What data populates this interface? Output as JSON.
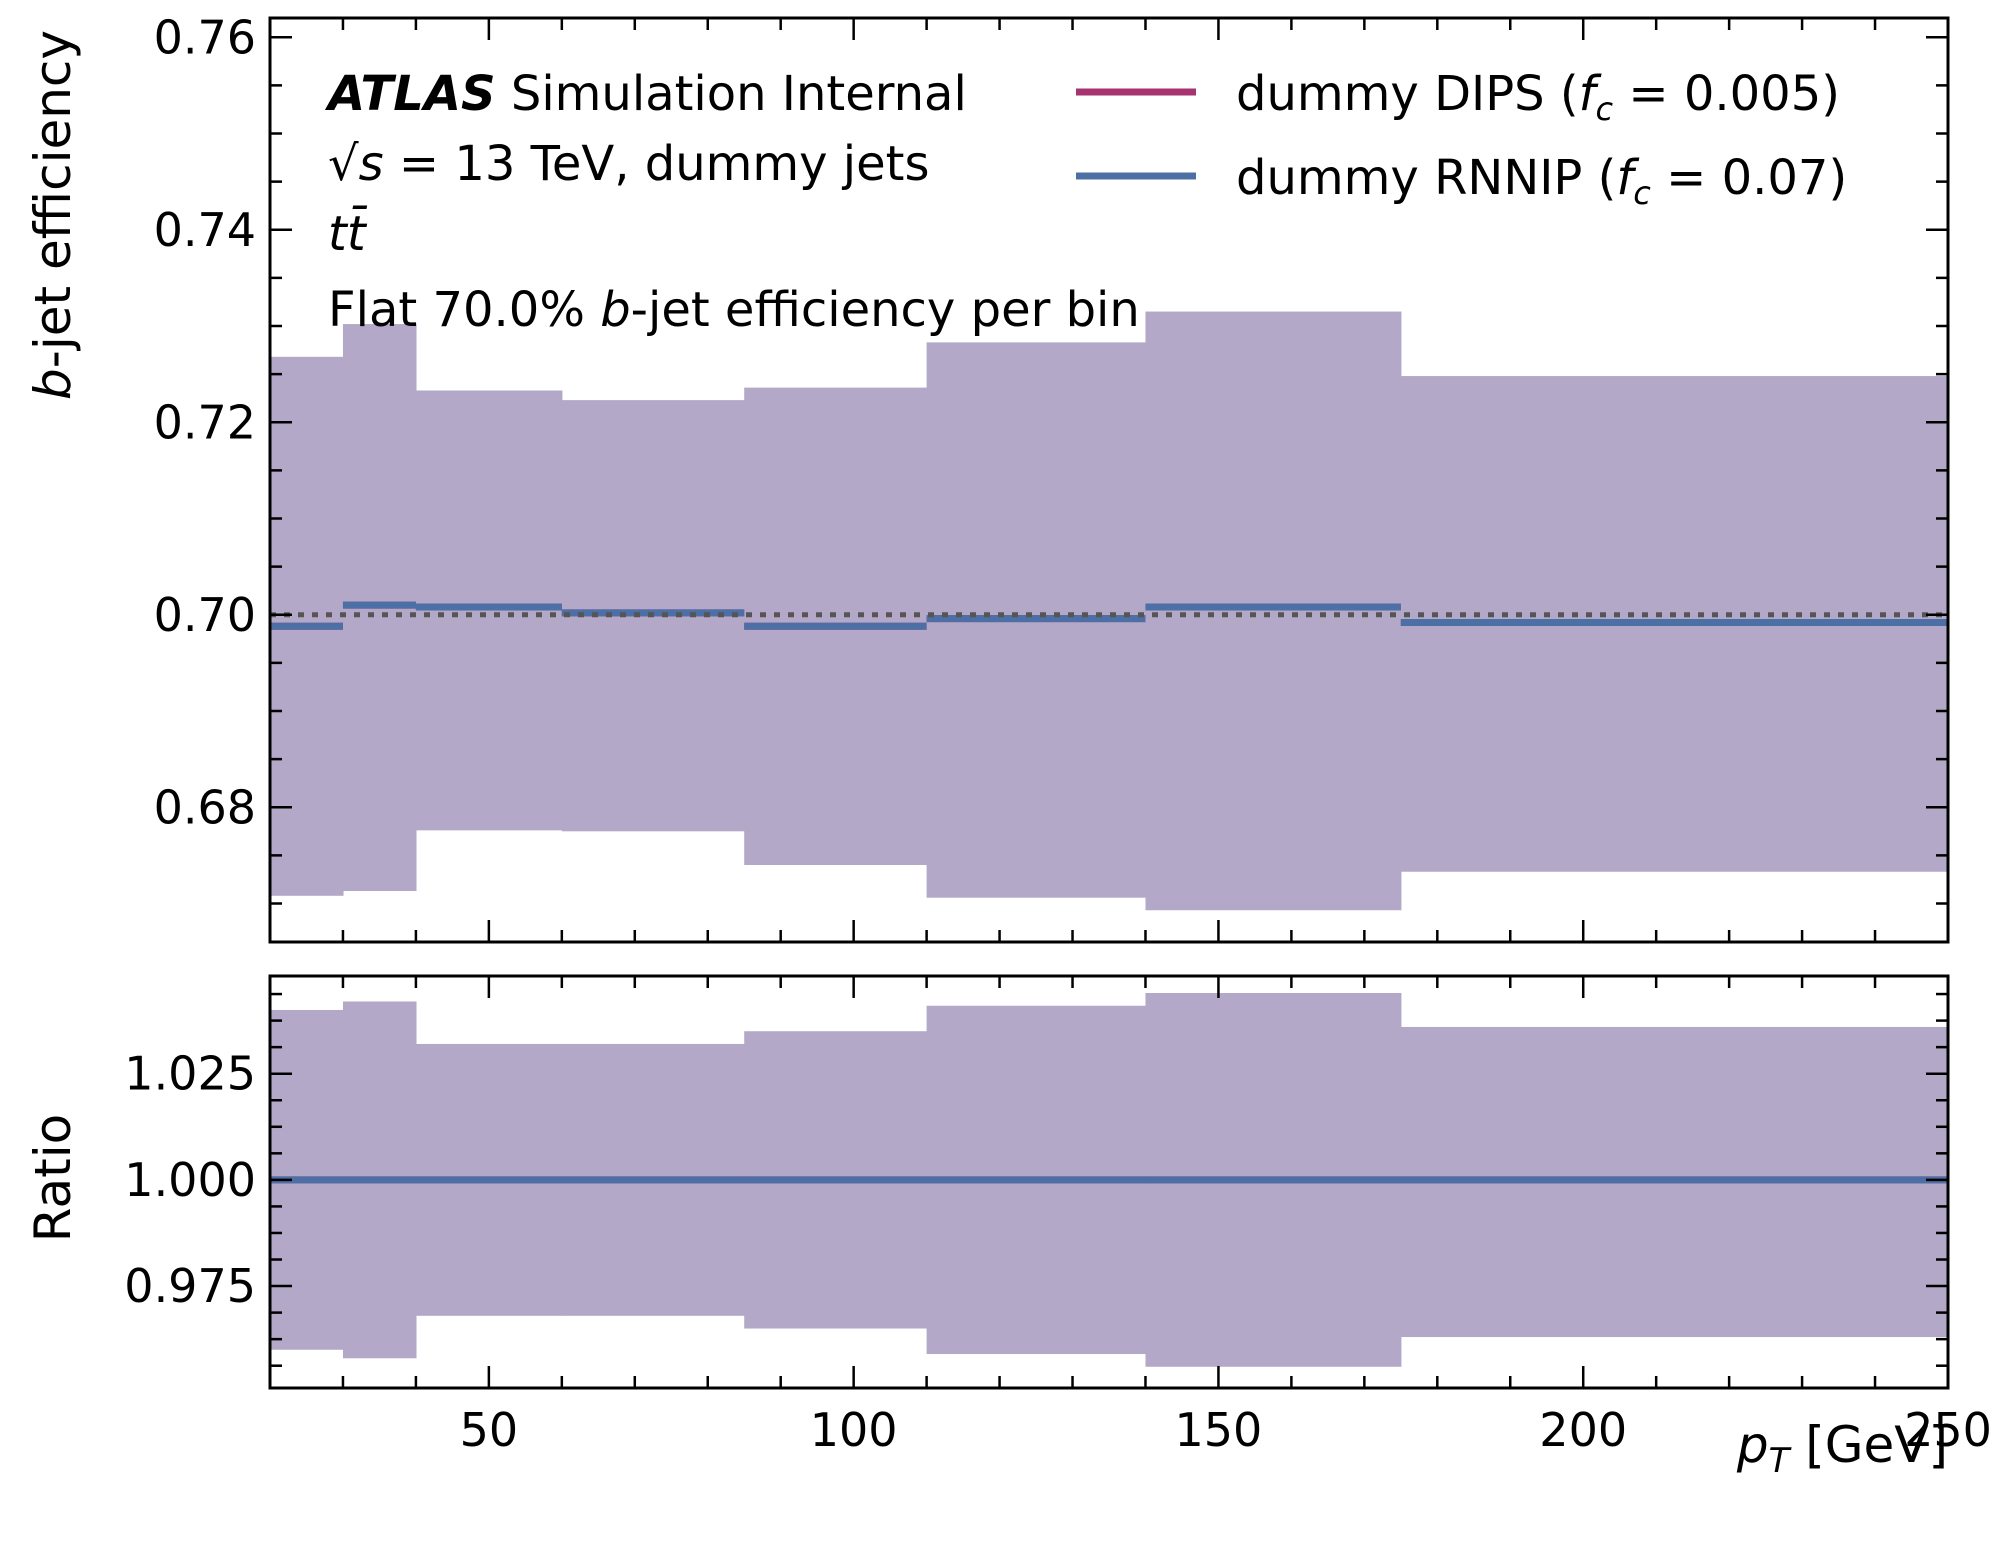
{
  "chart_data": {
    "type": "step",
    "bin_edges": [
      20,
      30,
      40,
      60,
      85,
      110,
      140,
      175,
      250
    ],
    "panels": [
      {
        "name": "efficiency",
        "ylabel": {
          "pre": "b",
          "post": "-jet efficiency"
        },
        "ylim": [
          0.666,
          0.762
        ],
        "yticks": [
          0.68,
          0.7,
          0.72,
          0.74,
          0.76
        ],
        "ytick_labels": [
          "0.68",
          "0.70",
          "0.72",
          "0.74",
          "0.76"
        ],
        "band": {
          "upper": [
            0.7268,
            0.7302,
            0.7233,
            0.7223,
            0.7236,
            0.7283,
            0.7315,
            0.7248
          ],
          "lower": [
            0.6708,
            0.6713,
            0.6776,
            0.6775,
            0.674,
            0.6706,
            0.6693,
            0.6733
          ]
        },
        "series": [
          {
            "name": "dummy DIPS",
            "values": [
              0.6988,
              0.701,
              0.7008,
              0.7002,
              0.6988,
              0.6996,
              0.7008,
              0.6992
            ]
          },
          {
            "name": "dummy RNNIP",
            "values": [
              0.6988,
              0.701,
              0.7008,
              0.7002,
              0.6988,
              0.6996,
              0.7008,
              0.6992
            ]
          }
        ],
        "reference_line": 0.7
      },
      {
        "name": "ratio",
        "ylabel": "Ratio",
        "ylim": [
          0.951,
          1.048
        ],
        "yticks": [
          0.975,
          1.0,
          1.025
        ],
        "ytick_labels": [
          "0.975",
          "1.000",
          "1.025"
        ],
        "band": {
          "upper": [
            1.04,
            1.042,
            1.032,
            1.032,
            1.035,
            1.041,
            1.044,
            1.036
          ],
          "lower": [
            0.96,
            0.958,
            0.968,
            0.968,
            0.965,
            0.959,
            0.956,
            0.963
          ]
        },
        "series": [
          {
            "name": "dummy DIPS",
            "values": [
              1.0,
              1.0,
              1.0,
              1.0,
              1.0,
              1.0,
              1.0,
              1.0
            ]
          },
          {
            "name": "dummy RNNIP",
            "values": [
              1.0,
              1.0,
              1.0,
              1.0,
              1.0,
              1.0,
              1.0,
              1.0
            ]
          }
        ]
      }
    ],
    "xlim": [
      20,
      250
    ],
    "xticks": [
      50,
      100,
      150,
      200,
      250
    ],
    "xtick_labels": [
      "50",
      "100",
      "150",
      "200",
      "250"
    ],
    "xlabel": {
      "var": "p",
      "sub": "T",
      "unit": " [GeV]"
    },
    "legend": {
      "placement": "top-right",
      "entries": [
        {
          "label": "dummy DIPS (",
          "math": "f",
          "sub": "c",
          "value": " = 0.005)"
        },
        {
          "label": "dummy RNNIP (",
          "math": "f",
          "sub": "c",
          "value": " = 0.07)"
        }
      ]
    },
    "annotations": {
      "atlas": "ATLAS",
      "atlas_suffix": " Simulation Internal",
      "energy_pre": "√",
      "energy_var": "s",
      "energy_post": " = 13 TeV, dummy jets",
      "process": "tt̄",
      "wp_pre": "Flat 70.0% ",
      "wp_b": "b",
      "wp_post": "-jet efficiency per bin"
    },
    "colors": {
      "band": "#b3a8c8",
      "dips": "#a6336f",
      "rnnip": "#4c6fa5",
      "reference": "#555555"
    }
  }
}
